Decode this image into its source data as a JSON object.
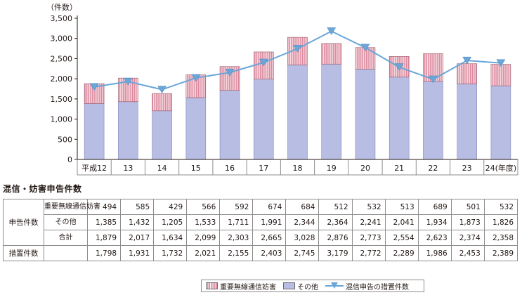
{
  "chart_data": {
    "type": "bar",
    "unit_label": "（件数）",
    "categories": [
      "平成12",
      "13",
      "14",
      "15",
      "16",
      "17",
      "18",
      "19",
      "20",
      "21",
      "22",
      "23",
      "24(年度)"
    ],
    "ylim": [
      0,
      3500
    ],
    "yticks": [
      "0",
      "500",
      "1,000",
      "1,500",
      "2,000",
      "2,500",
      "3,000",
      "3,500"
    ],
    "series": [
      {
        "name": "重要無線通信妨害",
        "kind": "stacked-bar-top",
        "color": "#d9849a",
        "values": [
          494,
          585,
          429,
          566,
          592,
          674,
          684,
          512,
          532,
          513,
          689,
          501,
          532
        ]
      },
      {
        "name": "その他",
        "kind": "stacked-bar-base",
        "color": "#b7bde3",
        "values": [
          1385,
          1432,
          1205,
          1533,
          1711,
          1991,
          2344,
          2364,
          2241,
          2041,
          1934,
          1873,
          1826
        ]
      },
      {
        "name": "混信申告の措置件数",
        "kind": "line",
        "color": "#6aa6d8",
        "values": [
          1798,
          1931,
          1732,
          2021,
          2155,
          2403,
          2745,
          3179,
          2772,
          2289,
          1986,
          2453,
          2389
        ]
      }
    ],
    "grid": false
  },
  "table": {
    "title": "混信・妨害申告件数",
    "group_label": "申告件数",
    "rows": [
      {
        "label": "重要無線通信妨害",
        "cells": [
          "494",
          "585",
          "429",
          "566",
          "592",
          "674",
          "684",
          "512",
          "532",
          "513",
          "689",
          "501",
          "532"
        ]
      },
      {
        "label": "その他",
        "cells": [
          "1,385",
          "1,432",
          "1,205",
          "1,533",
          "1,711",
          "1,991",
          "2,344",
          "2,364",
          "2,241",
          "2,041",
          "1,934",
          "1,873",
          "1,826"
        ]
      },
      {
        "label": "合計",
        "cells": [
          "1,879",
          "2,017",
          "1,634",
          "2,099",
          "2,303",
          "2,665",
          "3,028",
          "2,876",
          "2,773",
          "2,554",
          "2,623",
          "2,374",
          "2,358"
        ]
      }
    ],
    "measures_row": {
      "label": "措置件数",
      "cells": [
        "1,798",
        "1,931",
        "1,732",
        "2,021",
        "2,155",
        "2,403",
        "2,745",
        "3,179",
        "2,772",
        "2,289",
        "1,986",
        "2,453",
        "2,389"
      ]
    }
  },
  "legend": {
    "items": [
      {
        "label": "重要無線通信妨害",
        "swatch": "hatch"
      },
      {
        "label": "その他",
        "swatch": "solid"
      },
      {
        "label": "混信申告の措置件数",
        "swatch": "line-triangle"
      }
    ]
  }
}
